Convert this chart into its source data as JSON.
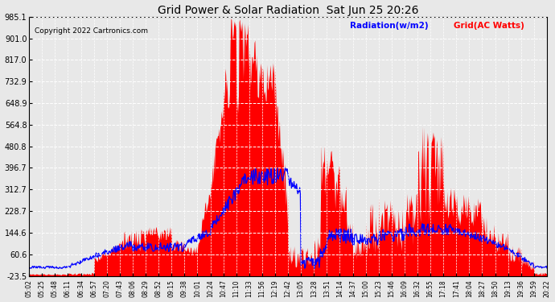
{
  "title": "Grid Power & Solar Radiation  Sat Jun 25 20:26",
  "copyright": "Copyright 2022 Cartronics.com",
  "legend_radiation": "Radiation(w/m2)",
  "legend_grid": "Grid(AC Watts)",
  "y_ticks": [
    -23.5,
    60.6,
    144.6,
    228.7,
    312.7,
    396.7,
    480.8,
    564.8,
    648.9,
    732.9,
    817.0,
    901.0,
    985.1
  ],
  "ylim": [
    -23.5,
    985.1
  ],
  "x_labels": [
    "05:02",
    "05:25",
    "05:48",
    "06:11",
    "06:34",
    "06:57",
    "07:20",
    "07:43",
    "08:06",
    "08:29",
    "08:52",
    "09:15",
    "09:38",
    "10:01",
    "10:24",
    "10:47",
    "11:10",
    "11:33",
    "11:56",
    "12:19",
    "12:42",
    "13:05",
    "13:28",
    "13:51",
    "14:14",
    "14:37",
    "15:00",
    "15:23",
    "15:46",
    "16:09",
    "16:32",
    "16:55",
    "17:18",
    "17:41",
    "18:04",
    "18:27",
    "18:50",
    "19:13",
    "19:36",
    "19:59",
    "20:22"
  ],
  "background_color": "#e8e8e8",
  "grid_color": "#ffffff",
  "fill_color": "#ff0000",
  "line_color_radiation": "#0000ff",
  "title_color": "#000000",
  "copyright_color": "#000000",
  "legend_radiation_color": "#0000ff",
  "legend_grid_color": "#ff0000"
}
